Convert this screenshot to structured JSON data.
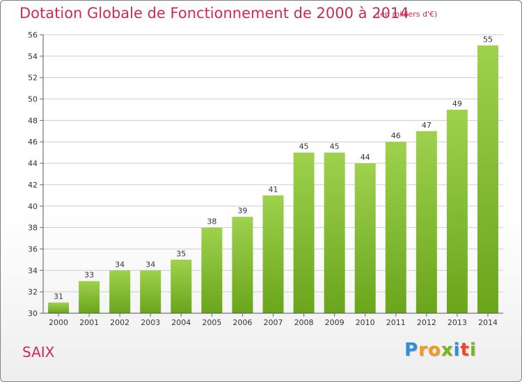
{
  "header": {
    "title": "Dotation Globale de Fonctionnement de 2000 à 2014",
    "unit": "(en milliers d'€)"
  },
  "footer": {
    "commune": "SAIX",
    "logo": {
      "letters": [
        {
          "ch": "P",
          "color": "#2e8fd4"
        },
        {
          "ch": "r",
          "color": "#f39a1a"
        },
        {
          "ch": "o",
          "color": "#f39a1a"
        },
        {
          "ch": "x",
          "color": "#7ab51d"
        },
        {
          "ch": "i",
          "color": "#2e8fd4"
        },
        {
          "ch": "t",
          "color": "#e84a2a"
        },
        {
          "ch": "i",
          "color": "#7ab51d"
        }
      ]
    }
  },
  "colors": {
    "title": "#cc2a52",
    "bar_top": "#9ed14e",
    "bar_bottom": "#6aa51c",
    "grid": "#cccccc",
    "axis_text": "#333333"
  },
  "chart_data": {
    "type": "bar",
    "categories": [
      "2000",
      "2001",
      "2002",
      "2003",
      "2004",
      "2005",
      "2006",
      "2007",
      "2008",
      "2009",
      "2010",
      "2011",
      "2012",
      "2013",
      "2014"
    ],
    "values": [
      31,
      33,
      34,
      34,
      35,
      38,
      39,
      41,
      45,
      45,
      44,
      46,
      47,
      49,
      55
    ],
    "ylim": [
      30,
      56
    ],
    "yticks": [
      30,
      32,
      34,
      36,
      38,
      40,
      42,
      44,
      46,
      48,
      50,
      52,
      54,
      56
    ],
    "grid": true
  }
}
